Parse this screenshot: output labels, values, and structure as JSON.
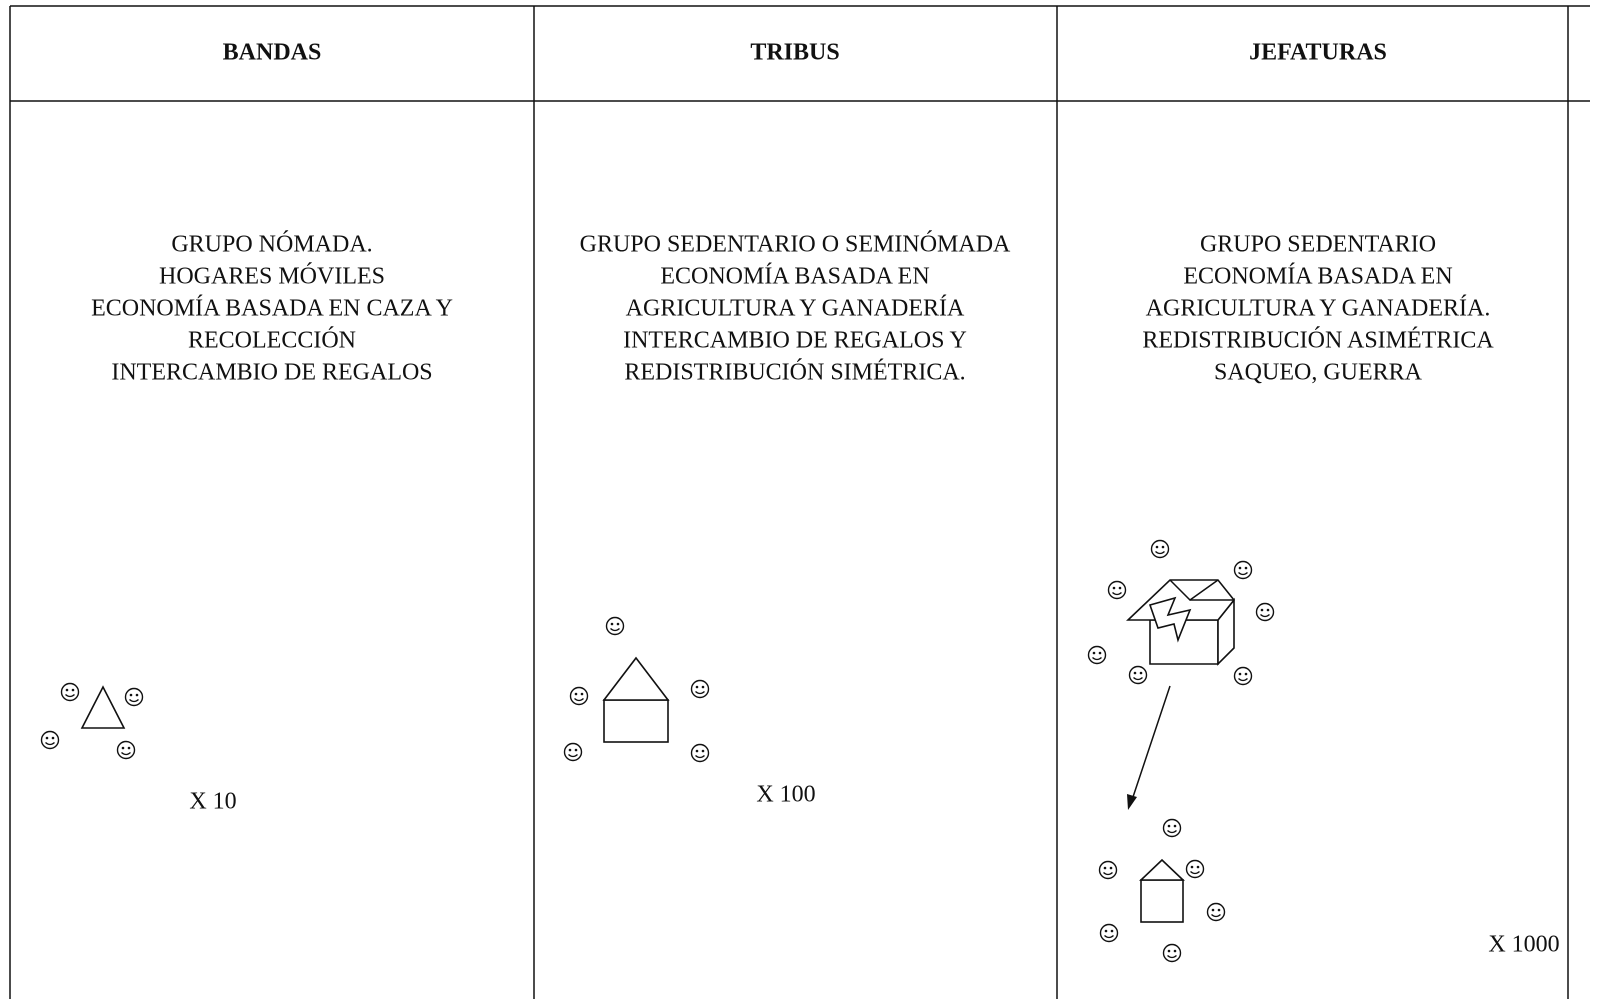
{
  "table": {
    "headers": [
      "BANDAS",
      "TRIBUS",
      "JEFATURAS"
    ],
    "cells": [
      {
        "lines": [
          "GRUPO NÓMADA.",
          "HOGARES MÓVILES",
          "ECONOMÍA BASADA EN CAZA Y",
          "RECOLECCIÓN",
          "INTERCAMBIO DE REGALOS"
        ],
        "multiplier": "X 10"
      },
      {
        "lines": [
          "GRUPO SEDENTARIO O SEMINÓMADA",
          "ECONOMÍA BASADA EN",
          "AGRICULTURA Y GANADERÍA",
          "INTERCAMBIO DE REGALOS Y",
          "REDISTRIBUCIÓN SIMÉTRICA."
        ],
        "multiplier": "X 100"
      },
      {
        "lines": [
          "GRUPO SEDENTARIO",
          "ECONOMÍA BASADA EN",
          "AGRICULTURA Y GANADERÍA.",
          "REDISTRIBUCIÓN ASIMÉTRICA",
          "SAQUEO, GUERRA"
        ],
        "multiplier": "X 1000"
      }
    ]
  }
}
